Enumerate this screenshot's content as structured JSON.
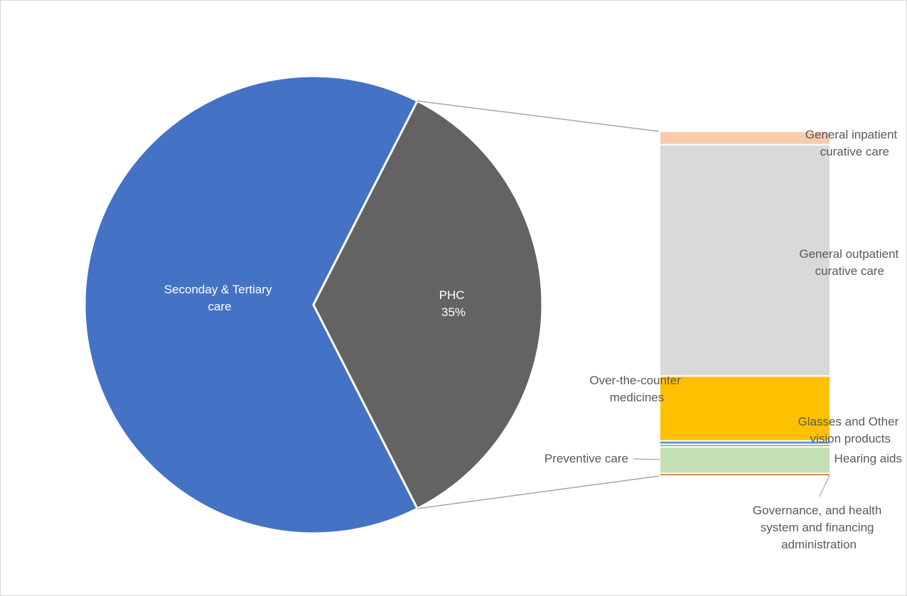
{
  "colors": {
    "pie_main": "#4472c4",
    "pie_detail": "#636363",
    "leader": "#a6a6a6",
    "label_dark": "#595959",
    "label_light": "#ffffff"
  },
  "chart_data": {
    "type": "bar-of-pie",
    "pie": [
      {
        "label": "Seconday & Tertiary care",
        "value": 65,
        "color": "#4472c4"
      },
      {
        "label": "PHC",
        "value": 35,
        "percent_label": "35%",
        "color": "#636363",
        "split": true
      }
    ],
    "breakdown": [
      {
        "label": "General inpatient curative care",
        "value": 2.2,
        "color": "#f8cbad"
      },
      {
        "label": "General outpatient curative care",
        "value": 38.2,
        "color": "#d9d9d9"
      },
      {
        "label": "Over-the-counter medicines",
        "value": 10.7,
        "color": "#ffc000"
      },
      {
        "label": "Glasses and Other vision products",
        "value": 0.6,
        "color": "#5b9bd5"
      },
      {
        "label": "Hearing aids",
        "value": 0.4,
        "color": "#70ad47"
      },
      {
        "label": "Preventive care",
        "value": 4.4,
        "color": "#c5e0b4"
      },
      {
        "label": "Governance, and health system and financing administration",
        "value": 0.4,
        "color": "#c55a11"
      }
    ],
    "labels": {
      "secondary_line1": "Seconday & Tertiary",
      "secondary_line2": "care",
      "phc_line1": "PHC",
      "phc_line2": "35%",
      "inpatient_line1": "General inpatient",
      "inpatient_line2": "curative care",
      "outpatient_line1": "General outpatient",
      "outpatient_line2": "curative care",
      "otc_line1": "Over-the-counter",
      "otc_line2": "medicines",
      "glasses_line1": "Glasses and Other",
      "glasses_line2": "vision products",
      "hearing_line1": "Hearing aids",
      "preventive_line1": "Preventive care",
      "governance_line1": "Governance, and health",
      "governance_line2": "system and financing",
      "governance_line3": "administration"
    }
  }
}
